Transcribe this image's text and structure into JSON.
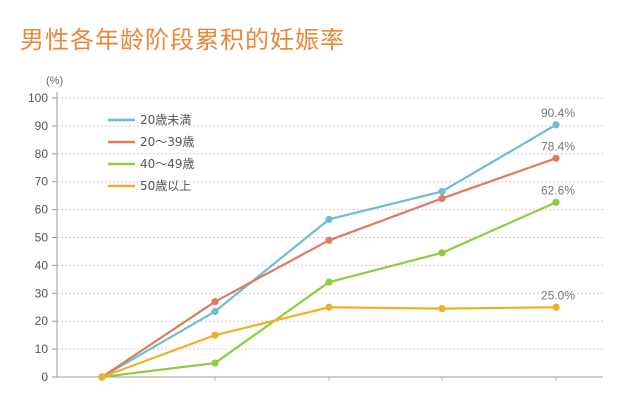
{
  "chart_data": {
    "type": "line",
    "title": "男性各年龄阶段累积的妊娠率",
    "ylabel": "(%)",
    "xlabel": "",
    "ylim": [
      0,
      100
    ],
    "yticks": [
      0,
      10,
      20,
      30,
      40,
      50,
      60,
      70,
      80,
      90,
      100
    ],
    "x": [
      0,
      1,
      2,
      3,
      4
    ],
    "grid": "horizontal dotted",
    "legend_position": "top-left",
    "series": [
      {
        "name": "20歳未満",
        "color": "#6bbdd0",
        "values": [
          0,
          23.5,
          56.5,
          66.5,
          90.4
        ],
        "end_label": "90.4%"
      },
      {
        "name": "20～39歳",
        "color": "#e07a5f",
        "values": [
          0,
          27,
          49,
          64,
          78.4
        ],
        "end_label": "78.4%"
      },
      {
        "name": "40～49歳",
        "color": "#8cce3e",
        "values": [
          0,
          5,
          34,
          44.5,
          62.6
        ],
        "end_label": "62.6%"
      },
      {
        "name": "50歳以上",
        "color": "#efb026",
        "values": [
          0,
          15,
          25,
          24.5,
          25.0
        ],
        "end_label": "25.0%"
      }
    ]
  }
}
